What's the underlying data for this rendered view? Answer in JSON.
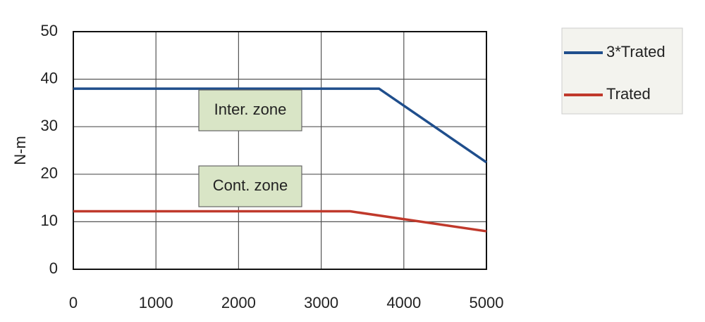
{
  "chart_data": {
    "type": "line",
    "y_label": "N-m",
    "xlim": [
      0,
      5000
    ],
    "xticks": [
      0,
      1000,
      2000,
      3000,
      4000,
      5000
    ],
    "ylim": [
      0,
      50
    ],
    "yticks": [
      0,
      10,
      20,
      30,
      40,
      50
    ],
    "grid": true,
    "legend": "right",
    "annotations": [
      "Inter. zone",
      "Cont. zone"
    ],
    "series": [
      {
        "name": "3*Trated",
        "color": "#1f4e8c",
        "x": [
          0,
          3700,
          5000
        ],
        "values": [
          38,
          38,
          22.5
        ]
      },
      {
        "name": "Trated",
        "color": "#c0392b",
        "x": [
          0,
          3350,
          5000
        ],
        "values": [
          12.2,
          12.2,
          8
        ]
      }
    ]
  }
}
